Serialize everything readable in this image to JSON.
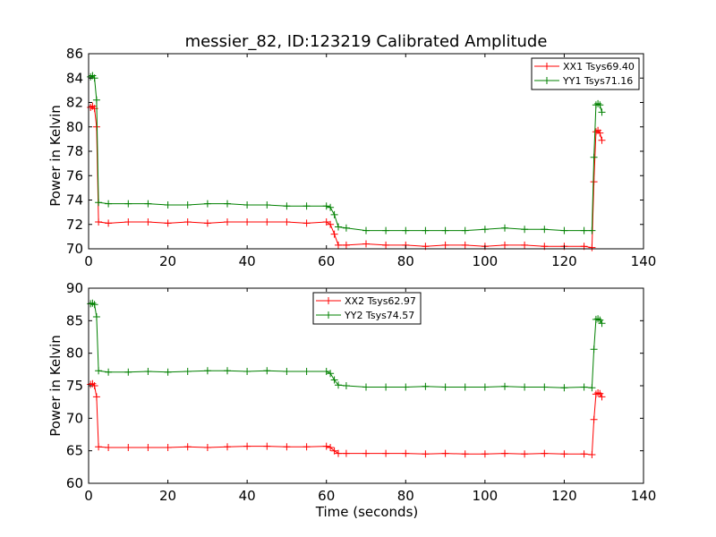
{
  "chart_data": [
    {
      "type": "line",
      "title": "messier_82, ID:123219 Calibrated Amplitude",
      "xlabel": "",
      "ylabel": "Power in Kelvin",
      "xlim": [
        0,
        140
      ],
      "ylim": [
        70,
        86
      ],
      "xticks": [
        "0",
        "20",
        "40",
        "60",
        "80",
        "100",
        "120",
        "140"
      ],
      "yticks": [
        "70",
        "72",
        "74",
        "76",
        "78",
        "80",
        "82",
        "84",
        "86"
      ],
      "grid": false,
      "legend": "top-right",
      "series": [
        {
          "name": "XX1 Tsys69.40",
          "color": "#ff0000",
          "marker": "+",
          "x": [
            0.5,
            1,
            1.5,
            2,
            2.5,
            5,
            10,
            15,
            20,
            25,
            30,
            35,
            40,
            45,
            50,
            55,
            60,
            61,
            62,
            63,
            65,
            70,
            75,
            80,
            85,
            90,
            95,
            100,
            105,
            110,
            115,
            120,
            125,
            127,
            127.5,
            128,
            128.5,
            129,
            129.5
          ],
          "y": [
            81.6,
            81.7,
            81.5,
            80.0,
            72.2,
            72.1,
            72.2,
            72.2,
            72.1,
            72.2,
            72.1,
            72.2,
            72.2,
            72.2,
            72.2,
            72.1,
            72.2,
            72.0,
            71.2,
            70.3,
            70.3,
            70.4,
            70.3,
            70.3,
            70.2,
            70.3,
            70.3,
            70.2,
            70.3,
            70.3,
            70.2,
            70.2,
            70.2,
            70.1,
            75.5,
            79.6,
            79.7,
            79.5,
            78.9
          ]
        },
        {
          "name": "YY1 Tsys71.16",
          "color": "#008000",
          "marker": "+",
          "x": [
            0.5,
            1,
            1.5,
            2,
            2.5,
            5,
            10,
            15,
            20,
            25,
            30,
            35,
            40,
            45,
            50,
            55,
            60,
            61,
            62,
            63,
            65,
            70,
            75,
            80,
            85,
            90,
            95,
            100,
            105,
            110,
            115,
            120,
            125,
            127,
            127.5,
            128,
            128.5,
            129,
            129.5
          ],
          "y": [
            84.1,
            84.2,
            84.0,
            82.2,
            73.8,
            73.7,
            73.7,
            73.7,
            73.6,
            73.6,
            73.7,
            73.7,
            73.6,
            73.6,
            73.5,
            73.5,
            73.5,
            73.4,
            72.8,
            71.8,
            71.7,
            71.5,
            71.5,
            71.5,
            71.5,
            71.5,
            71.5,
            71.6,
            71.7,
            71.6,
            71.6,
            71.5,
            71.5,
            71.5,
            77.5,
            81.8,
            81.9,
            81.8,
            81.2
          ]
        }
      ]
    },
    {
      "type": "line",
      "title": "",
      "xlabel": "Time (seconds)",
      "ylabel": "Power in Kelvin",
      "xlim": [
        0,
        140
      ],
      "ylim": [
        60,
        90
      ],
      "xticks": [
        "0",
        "20",
        "40",
        "60",
        "80",
        "100",
        "120",
        "140"
      ],
      "yticks": [
        "60",
        "65",
        "70",
        "75",
        "80",
        "85",
        "90"
      ],
      "grid": false,
      "legend": "top-center",
      "series": [
        {
          "name": "XX2 Tsys62.97",
          "color": "#ff0000",
          "marker": "+",
          "x": [
            0.5,
            1,
            1.5,
            2,
            2.5,
            5,
            10,
            15,
            20,
            25,
            30,
            35,
            40,
            45,
            50,
            55,
            60,
            61,
            62,
            63,
            65,
            70,
            75,
            80,
            85,
            90,
            95,
            100,
            105,
            110,
            115,
            120,
            125,
            127,
            127.5,
            128,
            128.5,
            129,
            129.5
          ],
          "y": [
            75.2,
            75.3,
            75.0,
            73.3,
            65.6,
            65.5,
            65.5,
            65.5,
            65.5,
            65.6,
            65.5,
            65.6,
            65.7,
            65.7,
            65.6,
            65.6,
            65.7,
            65.5,
            65.0,
            64.6,
            64.6,
            64.6,
            64.6,
            64.6,
            64.5,
            64.6,
            64.5,
            64.5,
            64.6,
            64.5,
            64.6,
            64.5,
            64.5,
            64.4,
            69.8,
            73.7,
            73.9,
            73.8,
            73.3
          ]
        },
        {
          "name": "YY2 Tsys74.57",
          "color": "#008000",
          "marker": "+",
          "x": [
            0.5,
            1,
            1.5,
            2,
            2.5,
            5,
            10,
            15,
            20,
            25,
            30,
            35,
            40,
            45,
            50,
            55,
            60,
            61,
            62,
            63,
            65,
            70,
            75,
            80,
            85,
            90,
            95,
            100,
            105,
            110,
            115,
            120,
            125,
            127,
            127.5,
            128,
            128.5,
            129,
            129.5
          ],
          "y": [
            87.6,
            87.7,
            87.5,
            85.6,
            77.3,
            77.1,
            77.1,
            77.2,
            77.1,
            77.2,
            77.3,
            77.3,
            77.2,
            77.3,
            77.2,
            77.2,
            77.2,
            76.9,
            75.9,
            75.1,
            75.0,
            74.8,
            74.8,
            74.8,
            74.9,
            74.8,
            74.8,
            74.8,
            74.9,
            74.8,
            74.8,
            74.7,
            74.8,
            74.7,
            80.6,
            85.2,
            85.3,
            85.1,
            84.6
          ]
        }
      ]
    }
  ]
}
